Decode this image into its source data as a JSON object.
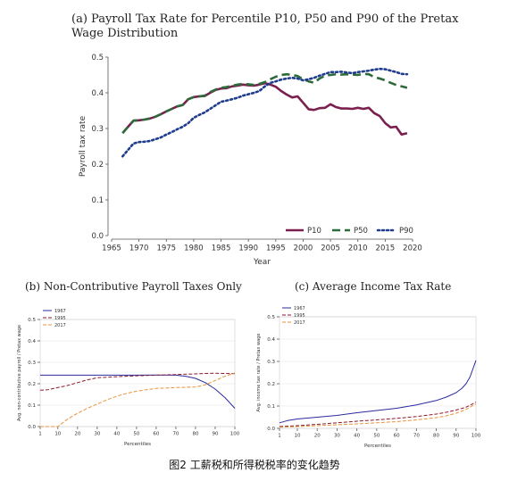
{
  "titles": {
    "a": "(a) Payroll Tax Rate for Percentile P10, P50 and P90 of the Pretax\nWage Distribution",
    "b": "(b) Non-Contributive Payroll Taxes Only",
    "c": "(c) Average Income Tax Rate"
  },
  "caption": "图2 工薪税和所得税税率的变化趋势",
  "chart_data": [
    {
      "type": "line",
      "title": "(a) Payroll Tax Rate for Percentile P10, P50 and P90 of the Pretax Wage Distribution",
      "xlabel": "Year",
      "ylabel": "Payroll tax rate",
      "xlim": [
        1965,
        2020
      ],
      "ylim": [
        0,
        0.5
      ],
      "xticks": [
        1965,
        1970,
        1975,
        1980,
        1985,
        1990,
        1995,
        2000,
        2005,
        2010,
        2015,
        2020
      ],
      "yticks": [
        0.0,
        0.1,
        0.2,
        0.3,
        0.4,
        0.5
      ],
      "legend_position": "bottom-right",
      "series": [
        {
          "name": "P10",
          "color": "#7b1f4f",
          "style": "solid",
          "x": [
            1967,
            1968,
            1969,
            1970,
            1971,
            1972,
            1973,
            1974,
            1975,
            1976,
            1977,
            1978,
            1979,
            1980,
            1981,
            1982,
            1983,
            1984,
            1985,
            1986,
            1987,
            1988,
            1989,
            1990,
            1991,
            1992,
            1993,
            1994,
            1995,
            1996,
            1997,
            1998,
            1999,
            2000,
            2001,
            2002,
            2003,
            2004,
            2005,
            2006,
            2007,
            2008,
            2009,
            2010,
            2011,
            2012,
            2013,
            2014,
            2015,
            2016,
            2017,
            2018,
            2019
          ],
          "y": [
            0.287,
            0.305,
            0.322,
            0.323,
            0.325,
            0.328,
            0.333,
            0.34,
            0.348,
            0.355,
            0.362,
            0.366,
            0.382,
            0.388,
            0.39,
            0.391,
            0.4,
            0.408,
            0.412,
            0.413,
            0.418,
            0.42,
            0.423,
            0.421,
            0.42,
            0.423,
            0.427,
            0.423,
            0.417,
            0.405,
            0.395,
            0.387,
            0.39,
            0.372,
            0.354,
            0.352,
            0.357,
            0.358,
            0.368,
            0.36,
            0.356,
            0.356,
            0.355,
            0.358,
            0.355,
            0.358,
            0.343,
            0.335,
            0.315,
            0.303,
            0.305,
            0.283,
            0.287
          ]
        },
        {
          "name": "P50",
          "color": "#2e6b3a",
          "style": "dashed",
          "x": [
            1967,
            1968,
            1969,
            1970,
            1971,
            1972,
            1973,
            1974,
            1975,
            1976,
            1977,
            1978,
            1979,
            1980,
            1981,
            1982,
            1983,
            1984,
            1985,
            1986,
            1987,
            1988,
            1989,
            1990,
            1991,
            1992,
            1993,
            1994,
            1995,
            1996,
            1997,
            1998,
            1999,
            2000,
            2001,
            2002,
            2003,
            2004,
            2005,
            2006,
            2007,
            2008,
            2009,
            2010,
            2011,
            2012,
            2013,
            2014,
            2015,
            2016,
            2017,
            2018,
            2019
          ],
          "y": [
            0.287,
            0.305,
            0.322,
            0.323,
            0.325,
            0.328,
            0.333,
            0.34,
            0.348,
            0.355,
            0.362,
            0.366,
            0.382,
            0.388,
            0.39,
            0.392,
            0.402,
            0.409,
            0.414,
            0.416,
            0.42,
            0.423,
            0.425,
            0.424,
            0.422,
            0.425,
            0.43,
            0.438,
            0.445,
            0.45,
            0.452,
            0.45,
            0.447,
            0.438,
            0.432,
            0.428,
            0.44,
            0.448,
            0.45,
            0.452,
            0.451,
            0.452,
            0.451,
            0.45,
            0.453,
            0.452,
            0.444,
            0.44,
            0.435,
            0.428,
            0.422,
            0.418,
            0.414
          ]
        },
        {
          "name": "P90",
          "color": "#1f3c8c",
          "style": "dotted",
          "x": [
            1967,
            1968,
            1969,
            1970,
            1971,
            1972,
            1973,
            1974,
            1975,
            1976,
            1977,
            1978,
            1979,
            1980,
            1981,
            1982,
            1983,
            1984,
            1985,
            1986,
            1987,
            1988,
            1989,
            1990,
            1991,
            1992,
            1993,
            1994,
            1995,
            1996,
            1997,
            1998,
            1999,
            2000,
            2001,
            2002,
            2003,
            2004,
            2005,
            2006,
            2007,
            2008,
            2009,
            2010,
            2011,
            2012,
            2013,
            2014,
            2015,
            2016,
            2017,
            2018,
            2019
          ],
          "y": [
            0.222,
            0.24,
            0.258,
            0.262,
            0.263,
            0.265,
            0.27,
            0.275,
            0.283,
            0.29,
            0.298,
            0.305,
            0.315,
            0.33,
            0.338,
            0.345,
            0.355,
            0.365,
            0.375,
            0.378,
            0.382,
            0.386,
            0.392,
            0.396,
            0.4,
            0.405,
            0.418,
            0.428,
            0.432,
            0.437,
            0.44,
            0.442,
            0.44,
            0.435,
            0.438,
            0.442,
            0.448,
            0.453,
            0.458,
            0.458,
            0.459,
            0.457,
            0.455,
            0.458,
            0.46,
            0.462,
            0.465,
            0.467,
            0.466,
            0.462,
            0.458,
            0.453,
            0.452
          ]
        }
      ]
    },
    {
      "type": "line",
      "title": "(b) Non-Contributive Payroll Taxes Only",
      "xlabel": "Percentiles",
      "ylabel": "Avg. non-contributive payroll / Pretax wage",
      "xlim": [
        1,
        100
      ],
      "ylim": [
        0,
        0.5
      ],
      "xticks": [
        1,
        10,
        20,
        30,
        40,
        50,
        60,
        70,
        80,
        90,
        100
      ],
      "yticks": [
        0.0,
        0.1,
        0.2,
        0.3,
        0.4,
        0.5
      ],
      "legend_position": "top-left",
      "series": [
        {
          "name": "1967",
          "color": "#2a2a9e",
          "style": "solid",
          "x": [
            1,
            10,
            20,
            30,
            40,
            50,
            60,
            70,
            75,
            80,
            85,
            90,
            95,
            100
          ],
          "y": [
            0.24,
            0.24,
            0.24,
            0.24,
            0.24,
            0.24,
            0.241,
            0.24,
            0.235,
            0.225,
            0.205,
            0.175,
            0.135,
            0.085
          ]
        },
        {
          "name": "1995",
          "color": "#8b1a2b",
          "style": "dashed",
          "x": [
            1,
            5,
            10,
            15,
            20,
            25,
            30,
            40,
            50,
            60,
            70,
            80,
            85,
            90,
            95,
            100
          ],
          "y": [
            0.17,
            0.172,
            0.182,
            0.192,
            0.205,
            0.218,
            0.228,
            0.233,
            0.237,
            0.24,
            0.243,
            0.246,
            0.248,
            0.249,
            0.248,
            0.247
          ]
        },
        {
          "name": "2017",
          "color": "#e8923a",
          "style": "dashed",
          "x": [
            1,
            5,
            10,
            15,
            20,
            25,
            30,
            35,
            40,
            45,
            50,
            55,
            60,
            70,
            80,
            85,
            90,
            95,
            100
          ],
          "y": [
            0.0,
            0.0,
            0.0,
            0.035,
            0.062,
            0.085,
            0.105,
            0.125,
            0.142,
            0.155,
            0.165,
            0.172,
            0.178,
            0.182,
            0.185,
            0.195,
            0.215,
            0.235,
            0.25
          ]
        }
      ]
    },
    {
      "type": "line",
      "title": "(c) Average Income Tax Rate",
      "xlabel": "Percentiles",
      "ylabel": "Avg. income tax rate / Pretax wage",
      "xlim": [
        1,
        100
      ],
      "ylim": [
        0,
        0.5
      ],
      "xticks": [
        1,
        10,
        20,
        30,
        40,
        50,
        60,
        70,
        80,
        90,
        100
      ],
      "yticks": [
        0.0,
        0.1,
        0.2,
        0.3,
        0.4,
        0.5
      ],
      "legend_position": "top-left",
      "series": [
        {
          "name": "1967",
          "color": "#2a2a9e",
          "style": "solid",
          "x": [
            1,
            5,
            10,
            20,
            30,
            40,
            50,
            60,
            70,
            80,
            85,
            90,
            93,
            95,
            97,
            99,
            100
          ],
          "y": [
            0.025,
            0.035,
            0.042,
            0.05,
            0.058,
            0.07,
            0.08,
            0.09,
            0.105,
            0.125,
            0.14,
            0.16,
            0.18,
            0.2,
            0.23,
            0.28,
            0.305
          ]
        },
        {
          "name": "1995",
          "color": "#8b1a2b",
          "style": "dashed",
          "x": [
            1,
            10,
            20,
            30,
            40,
            50,
            60,
            70,
            80,
            85,
            90,
            95,
            98,
            100
          ],
          "y": [
            0.008,
            0.012,
            0.018,
            0.025,
            0.032,
            0.038,
            0.045,
            0.053,
            0.064,
            0.072,
            0.082,
            0.095,
            0.108,
            0.118
          ]
        },
        {
          "name": "2017",
          "color": "#e8923a",
          "style": "dashed",
          "x": [
            1,
            10,
            20,
            30,
            40,
            50,
            60,
            70,
            80,
            85,
            90,
            95,
            98,
            100
          ],
          "y": [
            0.005,
            0.008,
            0.012,
            0.016,
            0.02,
            0.025,
            0.03,
            0.038,
            0.048,
            0.056,
            0.068,
            0.085,
            0.1,
            0.11
          ]
        }
      ]
    }
  ]
}
